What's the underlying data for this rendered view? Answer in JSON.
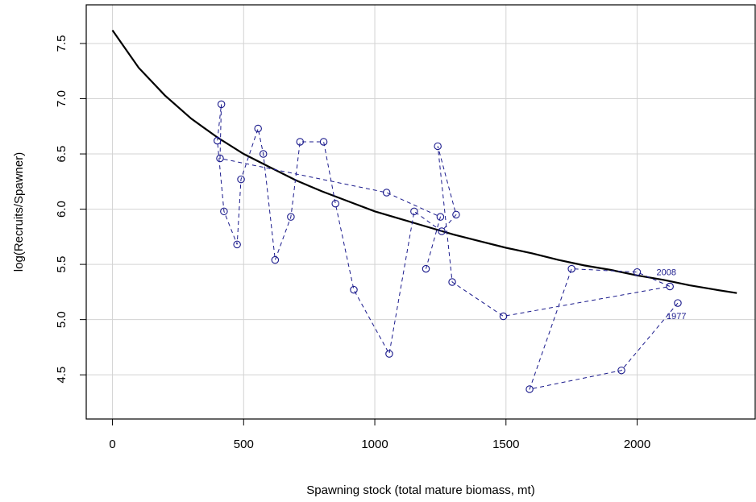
{
  "chart_data": {
    "type": "scatter",
    "title": "",
    "xlabel": "Spawning stock (total mature biomass, mt)",
    "ylabel": "log(Recruits/Spawner)",
    "xlim": [
      -100,
      2450
    ],
    "ylim": [
      4.1,
      7.85
    ],
    "xticks": [
      0,
      500,
      1000,
      1500,
      2000
    ],
    "xtick_labels": [
      "0",
      "500",
      "1000",
      "1500",
      "2000"
    ],
    "yticks": [
      4.5,
      5.0,
      5.5,
      6.0,
      6.5,
      7.0,
      7.5
    ],
    "ytick_labels": [
      "4.5",
      "5.0",
      "5.5",
      "6.0",
      "6.5",
      "7.0",
      "7.5"
    ],
    "grid": true,
    "colors": {
      "observed": "#1a1a8c",
      "fit": "#000000",
      "grid": "#d3d3d3"
    },
    "series": [
      {
        "style": "dashed-line-with-open-circles",
        "x": [
          2155,
          1940,
          1590,
          1750,
          2000,
          2125,
          1490,
          1295,
          1240,
          1310,
          1255,
          1150,
          1055,
          920,
          850,
          805,
          715,
          680,
          620,
          575,
          555,
          490,
          475,
          425,
          400,
          415,
          410,
          1045,
          1250,
          1195
        ],
        "y": [
          5.15,
          4.54,
          4.37,
          5.46,
          5.43,
          5.3,
          5.03,
          5.34,
          6.57,
          5.95,
          5.8,
          5.98,
          4.69,
          5.27,
          6.05,
          6.61,
          6.61,
          5.93,
          5.54,
          6.5,
          6.73,
          6.27,
          5.68,
          5.98,
          6.62,
          6.95,
          6.46,
          6.15,
          5.93,
          5.46
        ]
      },
      {
        "style": "solid-fitted-curve",
        "x": [
          0,
          100,
          200,
          300,
          400,
          500,
          600,
          700,
          800,
          900,
          1000,
          1100,
          1200,
          1300,
          1400,
          1500,
          1600,
          1700,
          1800,
          1900,
          2000,
          2100,
          2200,
          2300,
          2380
        ],
        "y": [
          7.62,
          7.28,
          7.03,
          6.82,
          6.65,
          6.5,
          6.38,
          6.26,
          6.16,
          6.07,
          5.98,
          5.91,
          5.84,
          5.77,
          5.71,
          5.65,
          5.6,
          5.54,
          5.49,
          5.45,
          5.4,
          5.36,
          5.31,
          5.27,
          5.24
        ]
      }
    ],
    "annotations": [
      {
        "text": "2008",
        "x": 2000,
        "y": 5.43
      },
      {
        "text": "1977",
        "x": 2155,
        "y": 5.15
      }
    ]
  }
}
